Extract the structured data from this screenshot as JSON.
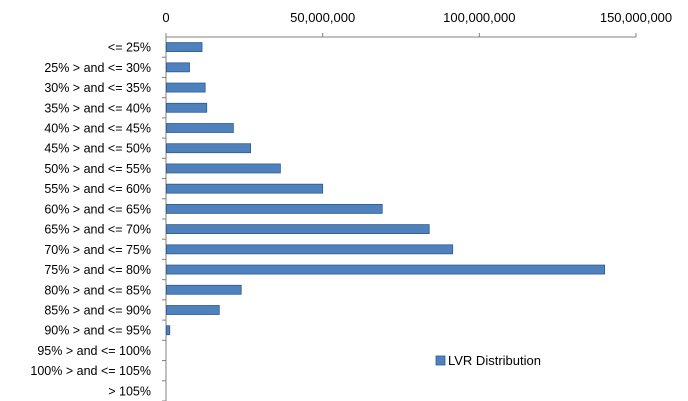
{
  "chart_data": {
    "type": "bar",
    "orientation": "horizontal",
    "title": "",
    "xlabel": "",
    "ylabel": "",
    "xlim": [
      0,
      150000000
    ],
    "x_ticks": [
      "0",
      "50,000,000",
      "100,000,000",
      "150,000,000"
    ],
    "x_tick_values": [
      0,
      50000000,
      100000000,
      150000000
    ],
    "x_axis_position": "top",
    "grid": false,
    "legend_position": "bottom-right",
    "bar_color": "#4f81bd",
    "bar_edge_color": "#2c5a8e",
    "categories": [
      "<= 25%",
      "25% > and <= 30%",
      "30% > and <= 35%",
      "35% > and <= 40%",
      "40% > and <= 45%",
      "45% > and <= 50%",
      "50% > and <= 55%",
      "55% > and <= 60%",
      "60% > and <= 65%",
      "65% > and <= 70%",
      "70% > and <= 75%",
      "75% > and <= 80%",
      "80% > and <= 85%",
      "85% > and <= 90%",
      "90% > and <= 95%",
      "95% > and <= 100%",
      "100% > and <= 105%",
      "> 105%"
    ],
    "series": [
      {
        "name": "LVR Distribution",
        "values": [
          11500000,
          7500000,
          12500000,
          13000000,
          21500000,
          27000000,
          36500000,
          50000000,
          69000000,
          84000000,
          91500000,
          140000000,
          24000000,
          17000000,
          1200000,
          0,
          0,
          0
        ]
      }
    ]
  }
}
